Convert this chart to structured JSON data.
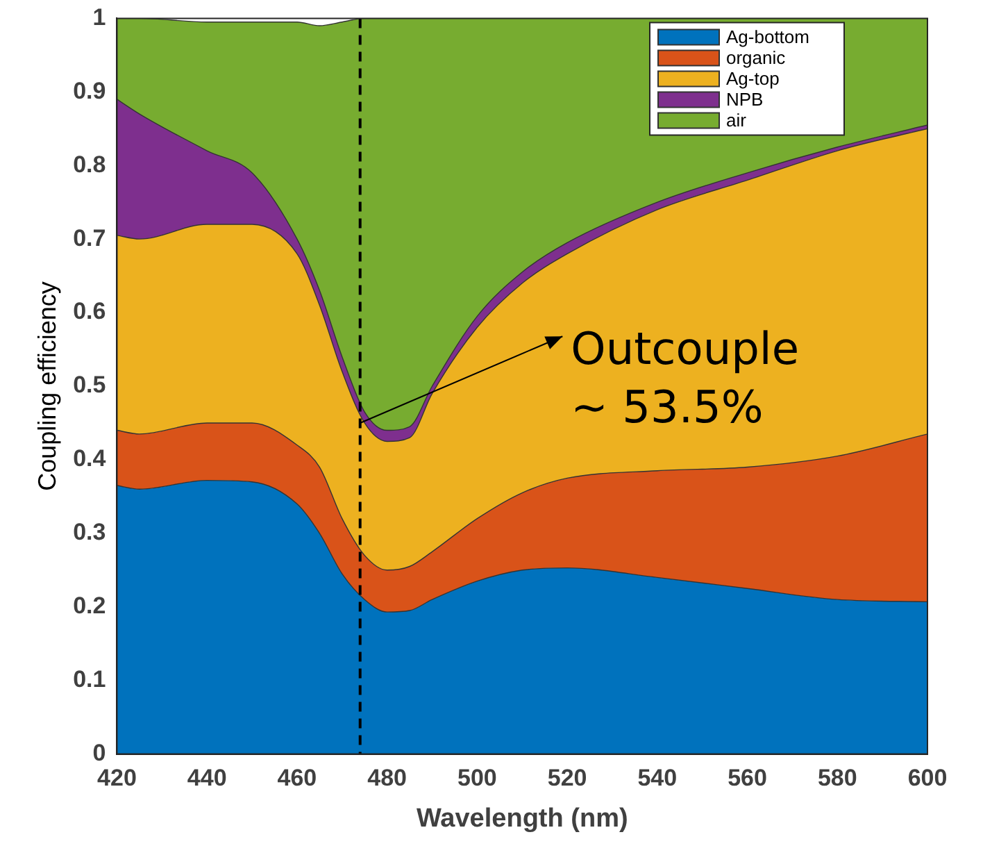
{
  "chart_data": {
    "type": "area",
    "stacked": true,
    "xlabel": "Wavelength (nm)",
    "ylabel": "Coupling efficiency",
    "x": [
      420,
      425,
      440,
      450,
      460,
      465,
      470,
      475,
      480,
      485,
      490,
      500,
      510,
      520,
      540,
      560,
      580,
      600
    ],
    "series": [
      {
        "name": "Ag-bottom",
        "color": "#0072bd",
        "values": [
          0.365,
          0.36,
          0.372,
          0.37,
          0.34,
          0.3,
          0.245,
          0.21,
          0.193,
          0.195,
          0.21,
          0.235,
          0.25,
          0.253,
          0.24,
          0.225,
          0.21,
          0.207
        ]
      },
      {
        "name": "organic",
        "color": "#d95319",
        "values": [
          0.075,
          0.075,
          0.078,
          0.08,
          0.08,
          0.09,
          0.075,
          0.06,
          0.057,
          0.06,
          0.065,
          0.085,
          0.105,
          0.122,
          0.145,
          0.165,
          0.195,
          0.228
        ]
      },
      {
        "name": "Ag-top",
        "color": "#edb120",
        "values": [
          0.265,
          0.265,
          0.27,
          0.27,
          0.26,
          0.22,
          0.2,
          0.18,
          0.175,
          0.175,
          0.215,
          0.26,
          0.285,
          0.305,
          0.355,
          0.39,
          0.415,
          0.415
        ]
      },
      {
        "name": "NPB",
        "color": "#7e2f8e",
        "values": [
          0.185,
          0.17,
          0.1,
          0.07,
          0.02,
          0.02,
          0.02,
          0.015,
          0.015,
          0.015,
          0.01,
          0.015,
          0.015,
          0.015,
          0.01,
          0.01,
          0.005,
          0.005
        ]
      },
      {
        "name": "air",
        "color": "#77ac30",
        "values": [
          0.11,
          0.13,
          0.175,
          0.205,
          0.295,
          0.36,
          0.455,
          0.535,
          0.56,
          0.555,
          0.5,
          0.405,
          0.345,
          0.305,
          0.25,
          0.21,
          0.175,
          0.145
        ]
      }
    ],
    "xlim": [
      420,
      600
    ],
    "xticks": [
      420,
      440,
      460,
      480,
      500,
      520,
      540,
      560,
      580,
      600
    ],
    "ylim": [
      0,
      1
    ],
    "yticks": [
      0,
      0.1,
      0.2,
      0.3,
      0.4,
      0.5,
      0.6,
      0.7,
      0.8,
      0.9,
      1
    ],
    "grid": false,
    "legend": "top right",
    "ref_lines": [
      {
        "axis": "x",
        "value": 474,
        "color": "#000000",
        "line_style": "dashed"
      }
    ],
    "annotations": [
      {
        "text": "Outcouple ~ 53.5%",
        "x": 474,
        "y": 0.45
      }
    ]
  }
}
